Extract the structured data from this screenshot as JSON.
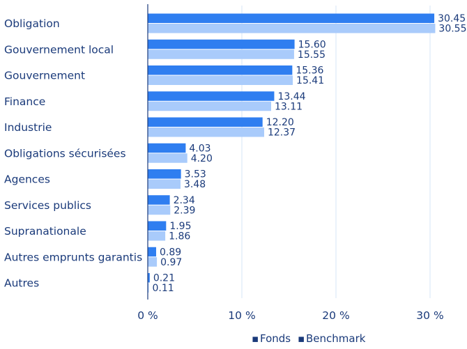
{
  "chart_data": {
    "type": "bar",
    "orientation": "horizontal",
    "categories": [
      "Obligation",
      "Gouvernement local",
      "Gouvernement",
      "Finance",
      "Industrie",
      "Obligations sécurisées",
      "Agences",
      "Services publics",
      "Supranationale",
      "Autres emprunts garantis",
      "Autres"
    ],
    "series": [
      {
        "name": "Fonds",
        "color": "#2f7ef0",
        "values": [
          30.45,
          15.6,
          15.36,
          13.44,
          12.2,
          4.03,
          3.53,
          2.34,
          1.95,
          0.89,
          0.21
        ],
        "labels": [
          "30.45",
          "15.60",
          "15.36",
          "13.44",
          "12.20",
          "4.03",
          "3.53",
          "2.34",
          "1.95",
          "0.89",
          "0.21"
        ]
      },
      {
        "name": "Benchmark",
        "color": "#a9cbfb",
        "values": [
          30.55,
          15.55,
          15.41,
          13.11,
          12.37,
          4.2,
          3.48,
          2.39,
          1.86,
          0.97,
          0.11
        ],
        "labels": [
          "30.55",
          "15.55",
          "15.41",
          "13.11",
          "12.37",
          "4.20",
          "3.48",
          "2.39",
          "1.86",
          "0.97",
          "0.11"
        ]
      }
    ],
    "xlim": [
      0,
      30
    ],
    "xticks": [
      0,
      10,
      20,
      30
    ],
    "xtick_labels": [
      "0 %",
      "10 %",
      "20 %",
      "30 %"
    ],
    "grid": "vertical",
    "legend_position": "bottom-right",
    "legend_marker": "▪",
    "title": "",
    "xlabel": "",
    "ylabel": ""
  }
}
